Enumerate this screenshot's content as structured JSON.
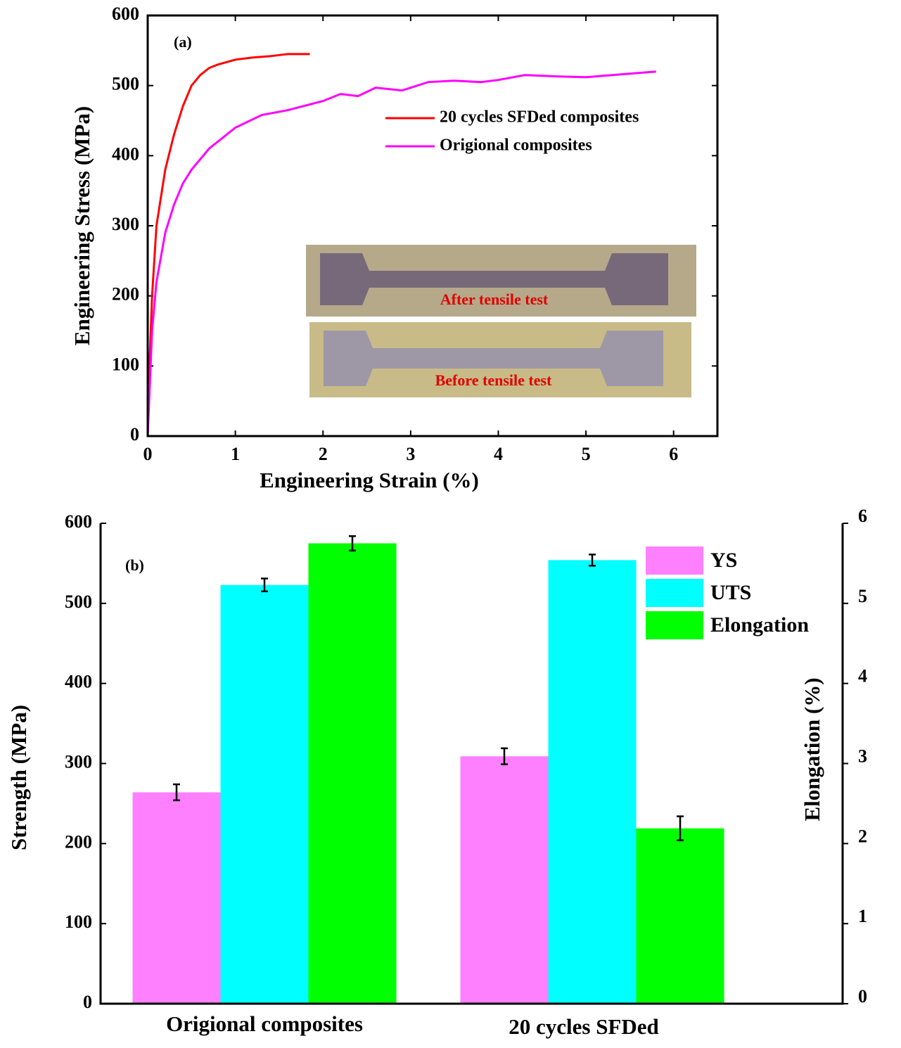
{
  "chart_data": [
    {
      "type": "line",
      "annotation": "(a)",
      "x_label": "Engineering Strain (%)",
      "y_label": "Engineering Stress (MPa)",
      "xlim": [
        0,
        6.5
      ],
      "xticks": [
        0,
        1,
        2,
        3,
        4,
        5,
        6
      ],
      "ylim": [
        0,
        600
      ],
      "yticks": [
        0,
        100,
        200,
        300,
        400,
        500,
        600
      ],
      "legend": "upper right",
      "inset_labels": [
        "After tensile test",
        "Before tensile test"
      ],
      "series": [
        {
          "name": "20 cycles SFDed composites",
          "color": "#ff0000",
          "x": [
            0,
            0.02,
            0.05,
            0.1,
            0.2,
            0.3,
            0.4,
            0.5,
            0.6,
            0.7,
            0.8,
            1.0,
            1.2,
            1.4,
            1.6,
            1.85
          ],
          "values": [
            0,
            100,
            200,
            300,
            380,
            430,
            470,
            500,
            515,
            525,
            530,
            537,
            540,
            542,
            545,
            545
          ]
        },
        {
          "name": "Origional composites",
          "color": "#ff00ff",
          "x": [
            0,
            0.05,
            0.1,
            0.2,
            0.3,
            0.4,
            0.5,
            0.7,
            1.0,
            1.3,
            1.6,
            2.0,
            2.2,
            2.4,
            2.6,
            2.9,
            3.2,
            3.5,
            3.8,
            4.0,
            4.3,
            4.7,
            5.0,
            5.3,
            5.8
          ],
          "values": [
            0,
            150,
            220,
            290,
            330,
            360,
            380,
            410,
            440,
            458,
            465,
            478,
            488,
            485,
            497,
            493,
            505,
            507,
            505,
            508,
            515,
            513,
            512,
            515,
            520
          ]
        }
      ]
    },
    {
      "type": "bar",
      "annotation": "(b)",
      "y_label": "Strength (MPa)",
      "y2_label": "Elongation (%)",
      "categories": [
        "Origional composites",
        "20 cycles SFDed"
      ],
      "ylim": [
        0,
        600
      ],
      "yticks": [
        0,
        100,
        200,
        300,
        400,
        500,
        600
      ],
      "y2lim": [
        0,
        6
      ],
      "y2ticks": [
        0,
        1,
        2,
        3,
        4,
        5,
        6
      ],
      "legend": "upper right",
      "series": [
        {
          "name": "YS",
          "color": "#ff80ff",
          "values": [
            264,
            309
          ],
          "errors": [
            10,
            10
          ]
        },
        {
          "name": "UTS",
          "color": "#00ffff",
          "values": [
            523,
            554
          ],
          "errors": [
            8,
            7
          ]
        },
        {
          "name": "Elongation",
          "color": "#00ff00",
          "axis": "y2",
          "values": [
            5.75,
            2.19
          ],
          "errors": [
            0.09,
            0.15
          ]
        }
      ]
    }
  ]
}
